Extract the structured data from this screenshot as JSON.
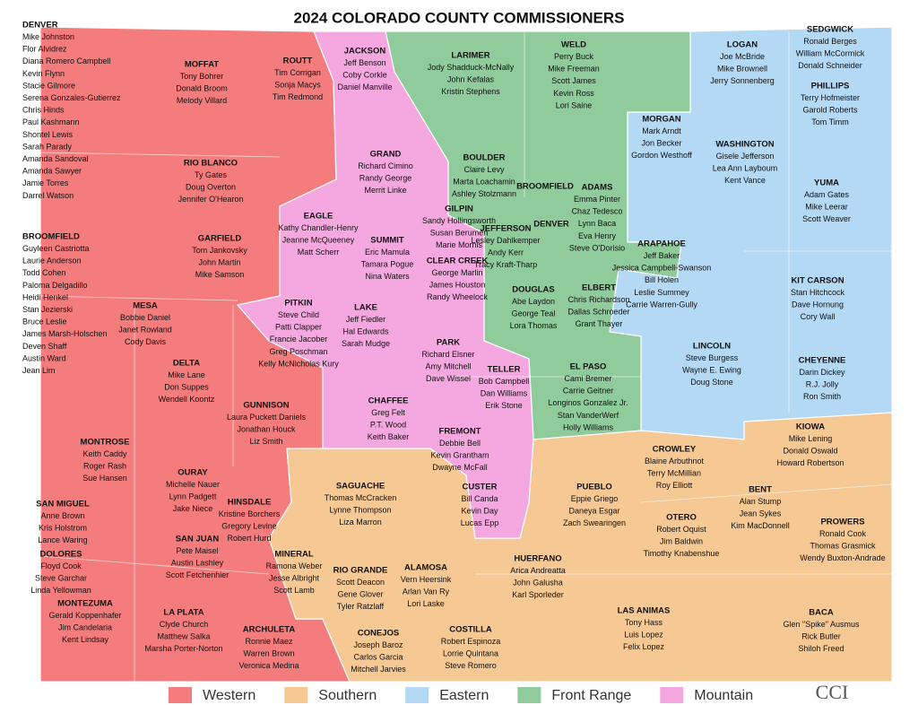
{
  "title": "2024 COLORADO COUNTY COMMISSIONERS",
  "side_lists": [
    {
      "name": "DENVER",
      "members": [
        "Mike Johnston",
        "Flor Alvidrez",
        "Diana Romero Campbell",
        "Kevin Flynn",
        "Stacie Gilmore",
        "Serena Gonzales-Gutierrez",
        "Chris Hinds",
        "Paul Kashmann",
        "Shontel Lewis",
        "Sarah Parady",
        "Amanda Sandoval",
        "Amanda Sawyer",
        "Jamie Torres",
        "Darrel Watson"
      ]
    },
    {
      "name": "BROOMFIELD",
      "members": [
        "Guyleen Castriotta",
        "Laurie Anderson",
        "Todd Cohen",
        "Paloma Delgadillo",
        "Heidi Henkel",
        "Stan Jezierski",
        "Bruce Leslie",
        "James Marsh-Holschen",
        "Deven Shaff",
        "Austin Ward",
        "Jean Lim"
      ]
    }
  ],
  "regions": [
    {
      "name": "Western",
      "color": "#f47c7c"
    },
    {
      "name": "Southern",
      "color": "#f5c894"
    },
    {
      "name": "Eastern",
      "color": "#b4d9f5"
    },
    {
      "name": "Front Range",
      "color": "#8fcb9b"
    },
    {
      "name": "Mountain",
      "color": "#f5a8e0"
    }
  ],
  "counties": [
    {
      "name": "MOFFAT",
      "region": 0,
      "members": [
        "Tony Bohrer",
        "Donald Broom",
        "Melody Villard"
      ]
    },
    {
      "name": "ROUTT",
      "region": 0,
      "members": [
        "Tim Corrigan",
        "Sonja Macys",
        "Tim Redmond"
      ]
    },
    {
      "name": "RIO BLANCO",
      "region": 0,
      "members": [
        "Ty Gates",
        "Doug Overton",
        "Jennifer O'Hearon"
      ]
    },
    {
      "name": "GARFIELD",
      "region": 0,
      "members": [
        "Tom Jankovsky",
        "John Martin",
        "Mike Samson"
      ]
    },
    {
      "name": "MESA",
      "region": 0,
      "members": [
        "Bobbie Daniel",
        "Janet Rowland",
        "Cody Davis"
      ]
    },
    {
      "name": "DELTA",
      "region": 0,
      "members": [
        "Mike Lane",
        "Don Suppes",
        "Wendell Koontz"
      ]
    },
    {
      "name": "GUNNISON",
      "region": 0,
      "members": [
        "Laura Puckett Daniels",
        "Jonathan Houck",
        "Liz Smith"
      ]
    },
    {
      "name": "MONTROSE",
      "region": 0,
      "members": [
        "Keith Caddy",
        "Roger Rash",
        "Sue Hansen"
      ]
    },
    {
      "name": "OURAY",
      "region": 0,
      "members": [
        "Michelle Nauer",
        "Lynn Padgett",
        "Jake Niece"
      ]
    },
    {
      "name": "SAN MIGUEL",
      "region": 0,
      "members": [
        "Anne Brown",
        "Kris Holstrom",
        "Lance Waring"
      ]
    },
    {
      "name": "HINSDALE",
      "region": 0,
      "members": [
        "Kristine Borchers",
        "Gregory Levine",
        "Robert Hurd"
      ]
    },
    {
      "name": "SAN JUAN",
      "region": 0,
      "members": [
        "Pete Maisel",
        "Austin Lashley",
        "Scott Fetchenhier"
      ]
    },
    {
      "name": "DOLORES",
      "region": 0,
      "members": [
        "Floyd Cook",
        "Steve Garchar",
        "Linda Yellowman"
      ]
    },
    {
      "name": "MONTEZUMA",
      "region": 0,
      "members": [
        "Gerald Koppenhafer",
        "Jim Candelaria",
        "Kent Lindsay"
      ]
    },
    {
      "name": "LA PLATA",
      "region": 0,
      "members": [
        "Clyde Church",
        "Matthew Salka",
        "Marsha Porter-Norton"
      ]
    },
    {
      "name": "ARCHULETA",
      "region": 0,
      "members": [
        "Ronnie Maez",
        "Warren Brown",
        "Veronica Medina"
      ]
    },
    {
      "name": "JACKSON",
      "region": 4,
      "members": [
        "Jeff Benson",
        "Coby Corkle",
        "Daniel Manville"
      ]
    },
    {
      "name": "GRAND",
      "region": 4,
      "members": [
        "Richard Cimino",
        "Randy George",
        "Merrit Linke"
      ]
    },
    {
      "name": "EAGLE",
      "region": 4,
      "members": [
        "Kathy Chandler-Henry",
        "Jeanne McQueeney",
        "Matt Scherr"
      ]
    },
    {
      "name": "SUMMIT",
      "region": 4,
      "members": [
        "Eric Mamula",
        "Tamara Pogue",
        "Nina Waters"
      ]
    },
    {
      "name": "GILPIN",
      "region": 4,
      "members": [
        "Sandy Hollingsworth",
        "Susan Berumen",
        "Marie Mornis"
      ]
    },
    {
      "name": "CLEAR CREEK",
      "region": 4,
      "members": [
        "George Marlin",
        "James Houston",
        "Randy Wheelock"
      ]
    },
    {
      "name": "PITKIN",
      "region": 4,
      "members": [
        "Steve Child",
        "Patti Clapper",
        "Francie Jacober",
        "Greg Poschman",
        "Kelly McNicholas Kury"
      ]
    },
    {
      "name": "LAKE",
      "region": 4,
      "members": [
        "Jeff Fiedler",
        "Hal Edwards",
        "Sarah Mudge"
      ]
    },
    {
      "name": "PARK",
      "region": 4,
      "members": [
        "Richard Elsner",
        "Amy Mitchell",
        "Dave Wissel"
      ]
    },
    {
      "name": "TELLER",
      "region": 4,
      "members": [
        "Bob Campbell",
        "Dan Williams",
        "Erik Stone"
      ]
    },
    {
      "name": "CHAFFEE",
      "region": 4,
      "members": [
        "Greg Felt",
        "P.T. Wood",
        "Keith Baker"
      ]
    },
    {
      "name": "FREMONT",
      "region": 4,
      "members": [
        "Debbie Bell",
        "Kevin Grantham",
        "Dwayne McFall"
      ]
    },
    {
      "name": "CUSTER",
      "region": 4,
      "members": [
        "Bill Canda",
        "Kevin Day",
        "Lucas Epp"
      ]
    },
    {
      "name": "LARIMER",
      "region": 3,
      "members": [
        "Jody Shadduck-McNally",
        "John Kefalas",
        "Kristin Stephens"
      ]
    },
    {
      "name": "WELD",
      "region": 3,
      "members": [
        "Perry Buck",
        "Mike Freeman",
        "Scott James",
        "Kevin Ross",
        "Lori Saine"
      ]
    },
    {
      "name": "BOULDER",
      "region": 3,
      "members": [
        "Claire Levy",
        "Marta Loachamin",
        "Ashley Stolzmann"
      ]
    },
    {
      "name": "BROOMFIELD",
      "region": 3,
      "members": []
    },
    {
      "name": "ADAMS",
      "region": 3,
      "members": [
        "Emma Pinter",
        "Chaz Tedesco",
        "Lynn Baca",
        "Eva Henry",
        "Steve O'Dorisio"
      ]
    },
    {
      "name": "DENVER",
      "region": 3,
      "members": []
    },
    {
      "name": "JEFFERSON",
      "region": 3,
      "members": [
        "Lesley Dahlkemper",
        "Andy Kerr",
        "Tracy Kraft-Tharp"
      ]
    },
    {
      "name": "DOUGLAS",
      "region": 3,
      "members": [
        "Abe Laydon",
        "George Teal",
        "Lora Thomas"
      ]
    },
    {
      "name": "EL PASO",
      "region": 3,
      "members": [
        "Cami Bremer",
        "Carrie Geitner",
        "Longinos Gonzalez Jr.",
        "Stan VanderWerf",
        "Holly Williams"
      ]
    },
    {
      "name": "LOGAN",
      "region": 2,
      "members": [
        "Joe McBride",
        "Mike Brownell",
        "Jerry Sonnenberg"
      ]
    },
    {
      "name": "SEDGWICK",
      "region": 2,
      "members": [
        "Ronald Berges",
        "William McCormick",
        "Donald Schneider"
      ]
    },
    {
      "name": "PHILLIPS",
      "region": 2,
      "members": [
        "Terry Hofmeister",
        "Garold Roberts",
        "Tom Timm"
      ]
    },
    {
      "name": "MORGAN",
      "region": 2,
      "members": [
        "Mark Arndt",
        "Jon Becker",
        "Gordon Westhoff"
      ]
    },
    {
      "name": "WASHINGTON",
      "region": 2,
      "members": [
        "Gisele Jefferson",
        "Lea Ann Layboum",
        "Kent Vance"
      ]
    },
    {
      "name": "YUMA",
      "region": 2,
      "members": [
        "Adam Gates",
        "Mike Leerar",
        "Scott Weaver"
      ]
    },
    {
      "name": "ARAPAHOE",
      "region": 2,
      "members": [
        "Jeff Baker",
        "Jessica Campbell-Swanson",
        "Bill Holen",
        "Leslie Summey",
        "Carrie Warren-Gully"
      ]
    },
    {
      "name": "ELBERT",
      "region": 2,
      "members": [
        "Chris Richardson",
        "Dallas Schroeder",
        "Grant Thayer"
      ]
    },
    {
      "name": "KIT CARSON",
      "region": 2,
      "members": [
        "Stan Hitchcock",
        "Dave Hornung",
        "Cory Wall"
      ]
    },
    {
      "name": "LINCOLN",
      "region": 2,
      "members": [
        "Steve Burgess",
        "Wayne E. Ewing",
        "Doug Stone"
      ]
    },
    {
      "name": "CHEYENNE",
      "region": 2,
      "members": [
        "Darin Dickey",
        "R.J. Jolly",
        "Ron Smith"
      ]
    },
    {
      "name": "SAGUACHE",
      "region": 1,
      "members": [
        "Thomas McCracken",
        "Lynne Thompson",
        "Liza Marron"
      ]
    },
    {
      "name": "MINERAL",
      "region": 1,
      "members": [
        "Ramona Weber",
        "Jesse Albright",
        "Scott Lamb"
      ]
    },
    {
      "name": "RIO GRANDE",
      "region": 1,
      "members": [
        "Scott Deacon",
        "Gene Glover",
        "Tyler Ratzlaff"
      ]
    },
    {
      "name": "ALAMOSA",
      "region": 1,
      "members": [
        "Vern Heersink",
        "Arlan Van Ry",
        "Lori Laske"
      ]
    },
    {
      "name": "CONEJOS",
      "region": 1,
      "members": [
        "Joseph Baroz",
        "Carlos Garcia",
        "Mitchell Jarvies"
      ]
    },
    {
      "name": "COSTILLA",
      "region": 1,
      "members": [
        "Robert Espinoza",
        "Lorrie Quintana",
        "Steve Romero"
      ]
    },
    {
      "name": "HUERFANO",
      "region": 1,
      "members": [
        "Arica Andreatta",
        "John Galusha",
        "Karl Sporleder"
      ]
    },
    {
      "name": "PUEBLO",
      "region": 1,
      "members": [
        "Eppie Griego",
        "Daneya Esgar",
        "Zach Swearingen"
      ]
    },
    {
      "name": "CROWLEY",
      "region": 1,
      "members": [
        "Blaine Arbuthnot",
        "Terry McMillian",
        "Roy Elliott"
      ]
    },
    {
      "name": "OTERO",
      "region": 1,
      "members": [
        "Robert Oquist",
        "Jim Baldwin",
        "Timothy Knabenshue"
      ]
    },
    {
      "name": "BENT",
      "region": 1,
      "members": [
        "Alan Stump",
        "Jean Sykes",
        "Kim MacDonnell"
      ]
    },
    {
      "name": "KIOWA",
      "region": 1,
      "members": [
        "Mike Lening",
        "Donald Oswald",
        "Howard Robertson"
      ]
    },
    {
      "name": "PROWERS",
      "region": 1,
      "members": [
        "Ronald Cook",
        "Thomas Grasmick",
        "Wendy Buxton-Andrade"
      ]
    },
    {
      "name": "LAS ANIMAS",
      "region": 1,
      "members": [
        "Tony Hass",
        "Luis Lopez",
        "Felix Lopez"
      ]
    },
    {
      "name": "BACA",
      "region": 1,
      "members": [
        "Glen \"Spike\" Ausmus",
        "Rick Butler",
        "Shiloh Freed"
      ]
    }
  ],
  "logo": "CCI"
}
